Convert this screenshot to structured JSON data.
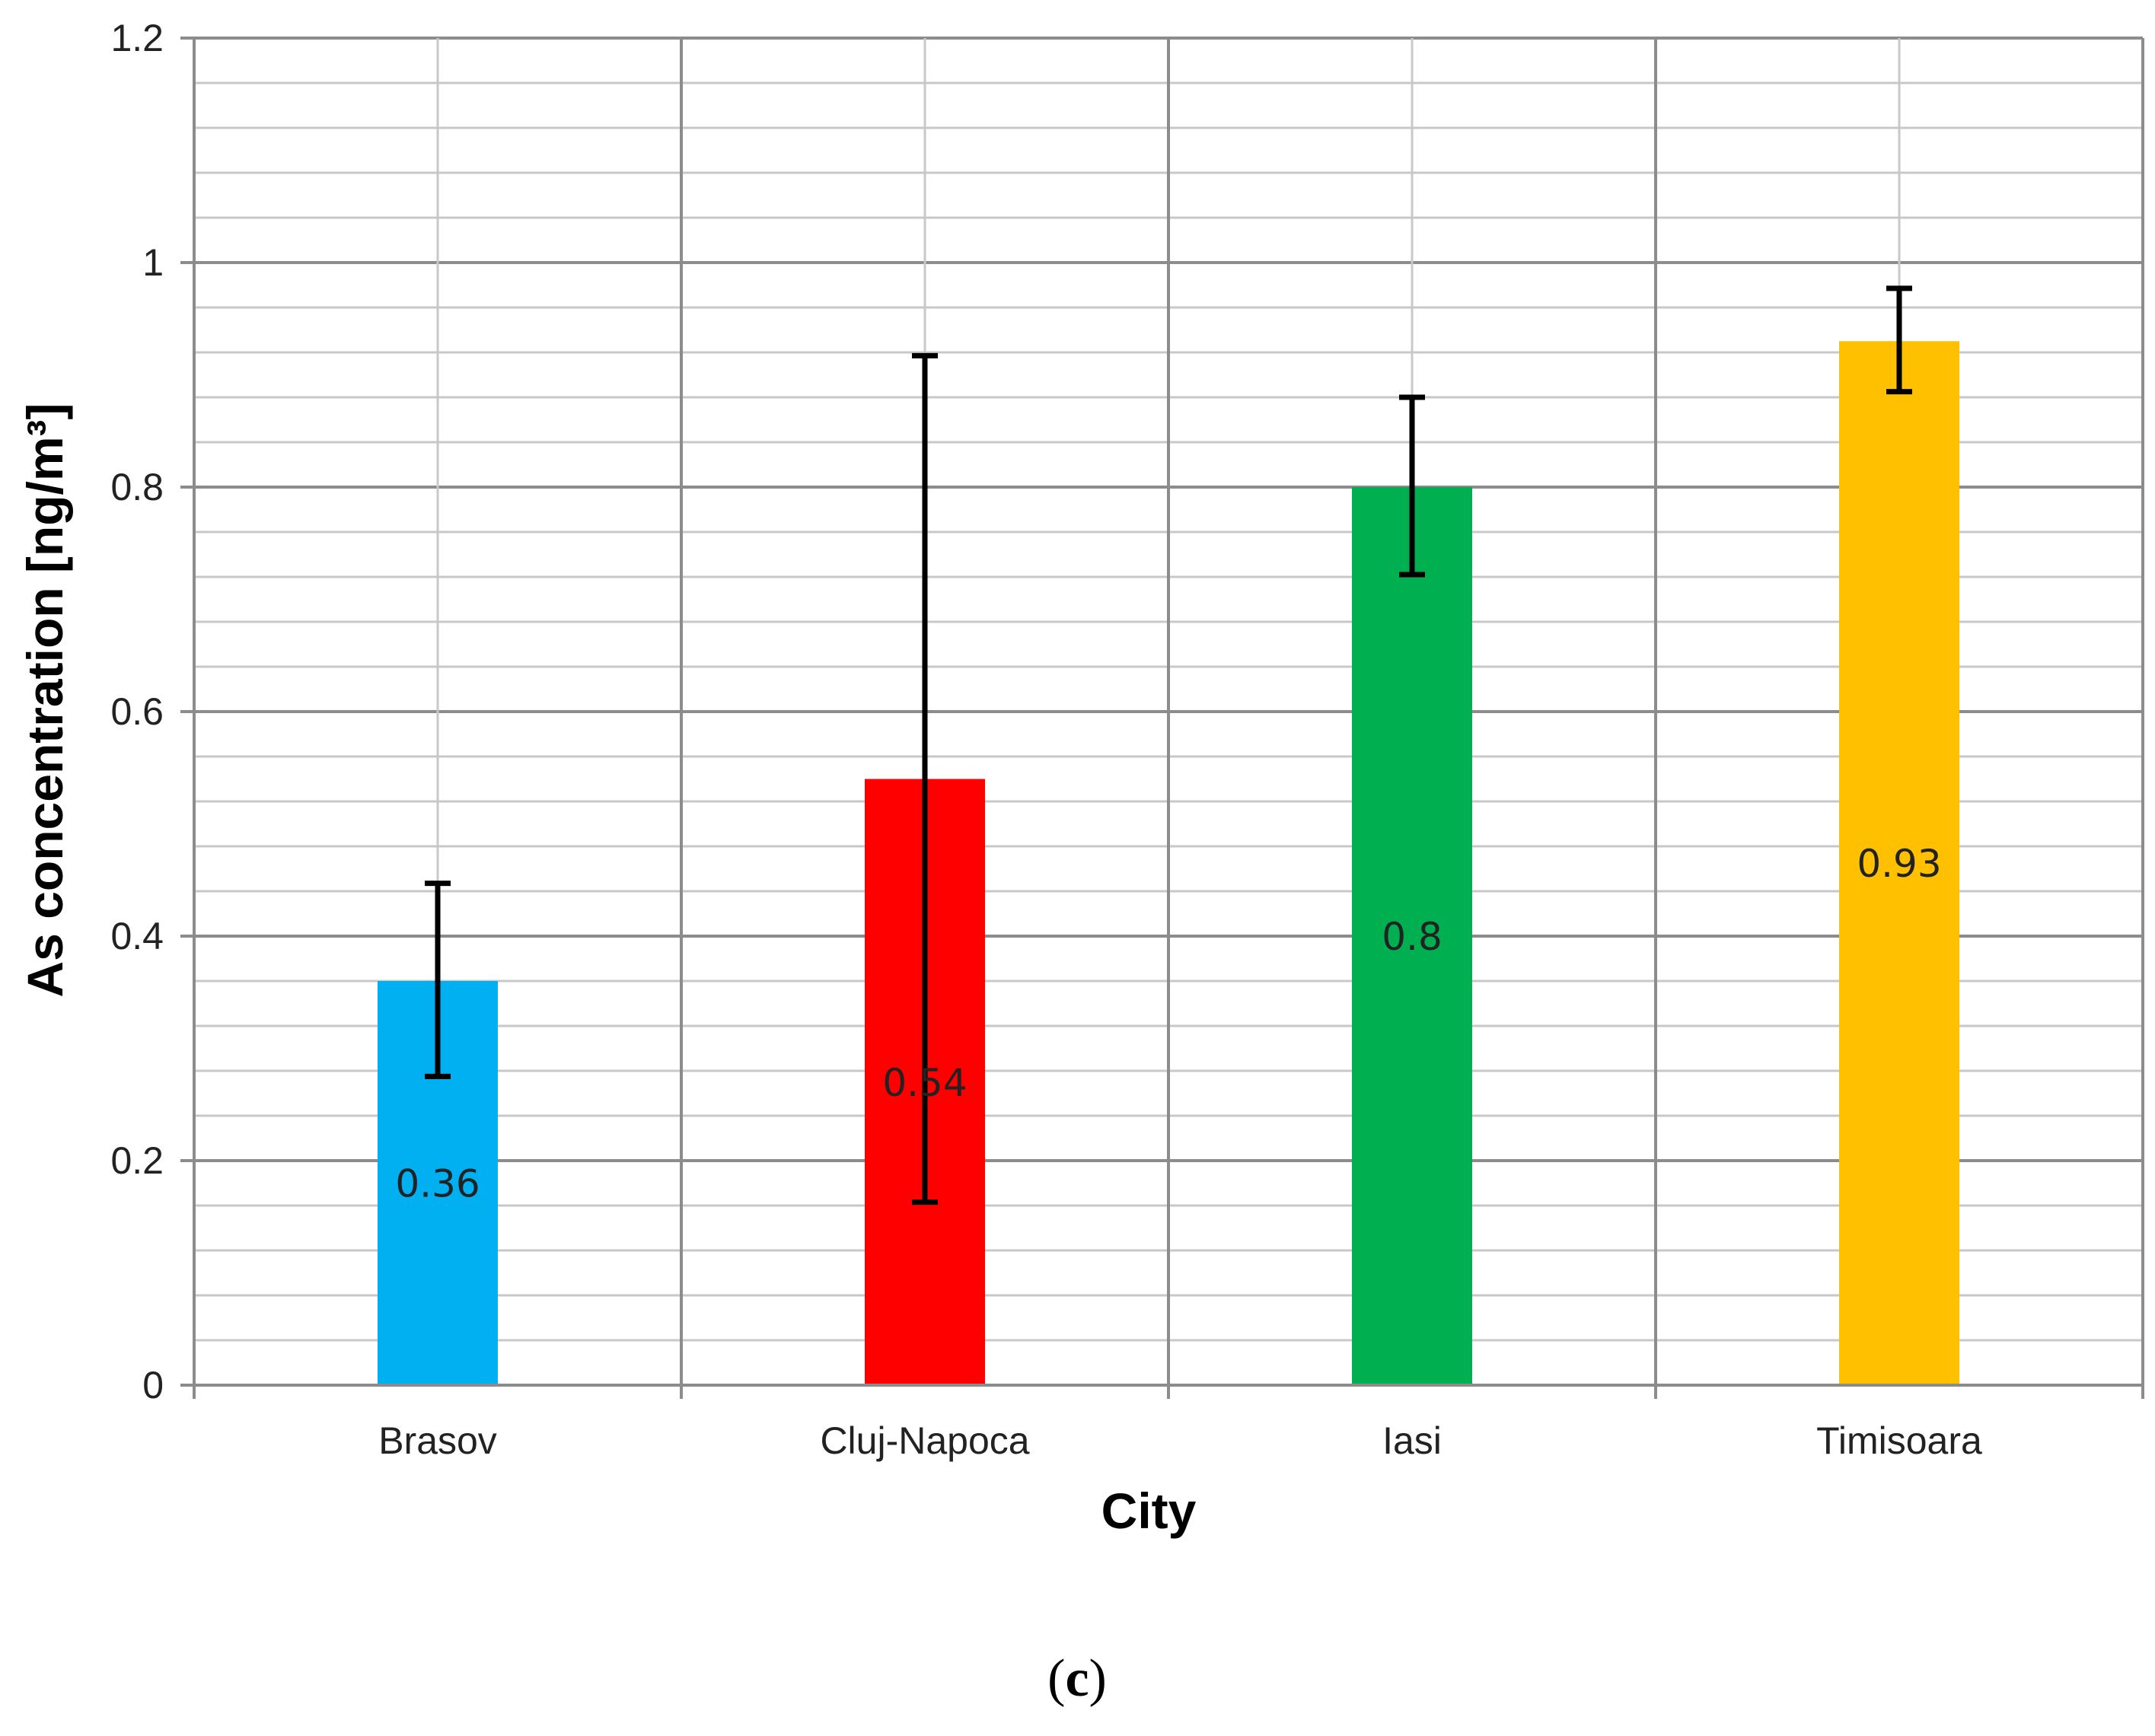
{
  "chart_data": {
    "type": "bar",
    "categories": [
      "Brasov",
      "Cluj-Napoca",
      "Iasi",
      "Timisoara"
    ],
    "values": [
      0.36,
      0.54,
      0.8,
      0.93
    ],
    "error_low": [
      0.275,
      0.163,
      0.722,
      0.885
    ],
    "error_high": [
      0.447,
      0.917,
      0.88,
      0.977
    ],
    "data_labels": [
      "0.36",
      "0.54",
      "0.8",
      "0.93"
    ],
    "colors": [
      "#00B0F0",
      "#FF0000",
      "#00B050",
      "#FFC000"
    ],
    "title": "",
    "xlabel": "City",
    "ylabel": "As concentration [ng/m³]",
    "ylim": [
      0,
      1.2
    ],
    "yticks": [
      0,
      0.2,
      0.4,
      0.6,
      0.8,
      1,
      1.2
    ],
    "ytick_labels": [
      "0",
      "0.2",
      "0.4",
      "0.6",
      "0.8",
      "1",
      "1.2"
    ],
    "minor_grid_step": 0.04,
    "grid": true,
    "legend": "none"
  },
  "panel_label": {
    "open": "(",
    "letter": "c",
    "close": ")"
  }
}
